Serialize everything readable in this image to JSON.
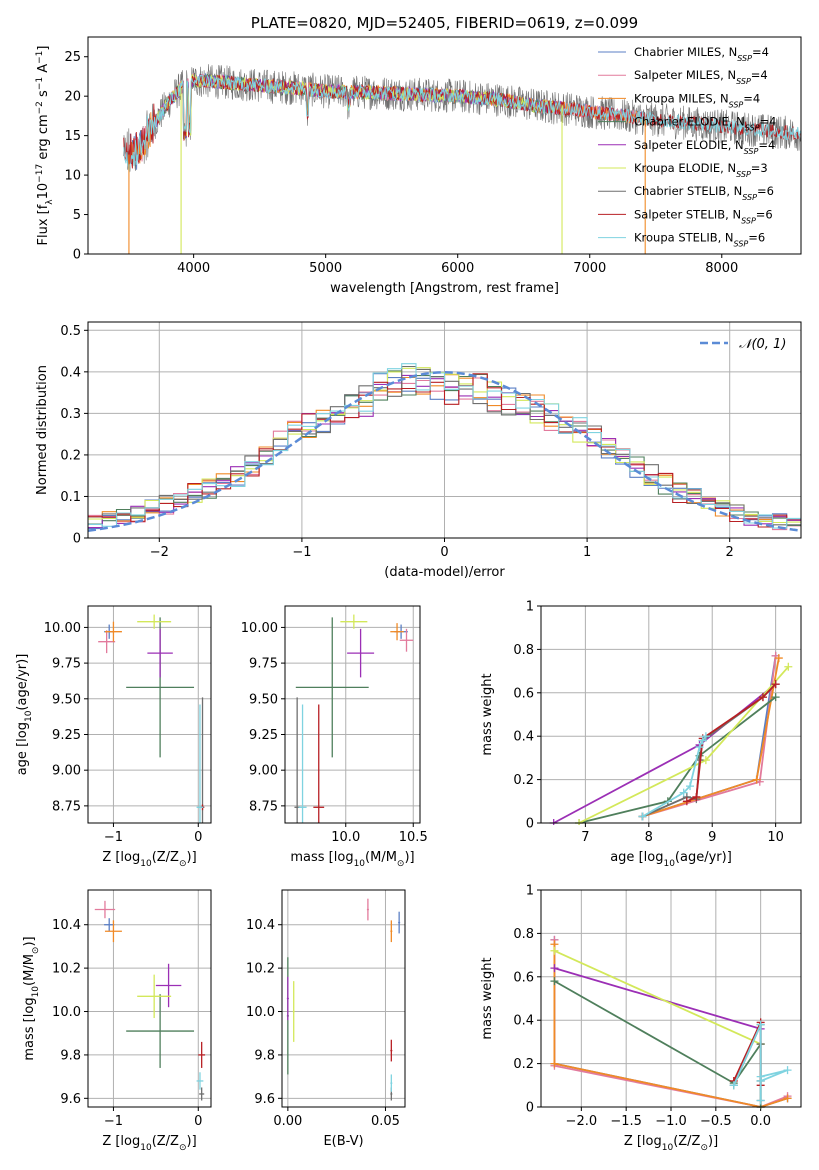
{
  "colors": {
    "Chabrier MILES": "#5b7fc4",
    "Salpeter MILES": "#e27a9c",
    "Kroupa MILES": "#f08a26",
    "Chabrier ELODIE": "#4f7f5c",
    "Salpeter ELODIE": "#9b2fb5",
    "Kroupa ELODIE": "#d3e85a",
    "Chabrier STELIB": "#6f6f6f",
    "Salpeter STELIB": "#b82024",
    "Kroupa STELIB": "#7fd3e0"
  },
  "chart_data": [
    {
      "id": "spectrum",
      "type": "line",
      "title": "PLATE=0820, MJD=52405, FIBERID=0619, z=0.099",
      "xlabel": "wavelength [Angstrom, rest frame]",
      "ylabel": "Flux [f",
      "ylabel_parts": [
        "Flux [f",
        "λ",
        "10",
        "−17",
        " erg cm",
        "−2",
        " s",
        "−1",
        " A",
        "−1",
        "]"
      ],
      "xlim": [
        3200,
        8600
      ],
      "ylim": [
        0,
        27.5
      ],
      "xticks": [
        4000,
        5000,
        6000,
        7000,
        8000
      ],
      "yticks": [
        0,
        5,
        10,
        15,
        20,
        25
      ],
      "legend_position": "top-right",
      "legend": [
        {
          "name": "Chabrier MILES",
          "nssp": "4"
        },
        {
          "name": "Salpeter MILES",
          "nssp": "4"
        },
        {
          "name": "Kroupa MILES",
          "nssp": "4"
        },
        {
          "name": "Chabrier ELODIE",
          "nssp": "4"
        },
        {
          "name": "Salpeter ELODIE",
          "nssp": "4"
        },
        {
          "name": "Kroupa ELODIE",
          "nssp": "3"
        },
        {
          "name": "Chabrier STELIB",
          "nssp": "6"
        },
        {
          "name": "Salpeter STELIB",
          "nssp": "6"
        },
        {
          "name": "Kroupa STELIB",
          "nssp": "6"
        }
      ],
      "legend_suffix": ", N",
      "legend_sub": "SSP",
      "trend": {
        "x": [
          3500,
          3600,
          3700,
          3800,
          3900,
          4000,
          4200,
          4400,
          4600,
          4800,
          5000,
          5300,
          5600,
          6000,
          6300,
          6600,
          6900,
          7200,
          7500,
          7800,
          8100,
          8400,
          8600
        ],
        "y": [
          12.5,
          13.5,
          16.5,
          19.0,
          21.0,
          22.0,
          21.8,
          21.5,
          21.2,
          21.0,
          20.6,
          20.5,
          20.3,
          20.0,
          19.6,
          18.8,
          18.3,
          17.6,
          17.0,
          16.5,
          16.0,
          15.5,
          15.2
        ]
      },
      "drops": [
        {
          "series": "Kroupa MILES",
          "x": 3510,
          "y": 0
        },
        {
          "series": "Kroupa ELODIE",
          "x": 3905,
          "y": 0
        },
        {
          "series": "Kroupa ELODIE",
          "x": 6790,
          "y": 0
        },
        {
          "series": "Kroupa MILES",
          "x": 7420,
          "y": 0
        }
      ]
    },
    {
      "id": "residuals",
      "type": "line",
      "xlabel": "(data-model)/error",
      "ylabel": "Normed distribution",
      "xlim": [
        -2.5,
        2.5
      ],
      "ylim": [
        0,
        0.52
      ],
      "xticks": [
        -2,
        -1,
        0,
        1,
        2
      ],
      "yticks": [
        0.0,
        0.1,
        0.2,
        0.3,
        0.4,
        0.5
      ],
      "legend_position": "top-right",
      "legend": [
        {
          "name": "𝒩(0, 1)",
          "style": "dashed"
        }
      ],
      "bin_centers": [
        -2.45,
        -2.35,
        -2.25,
        -2.15,
        -2.05,
        -1.95,
        -1.85,
        -1.75,
        -1.65,
        -1.55,
        -1.45,
        -1.35,
        -1.25,
        -1.15,
        -1.05,
        -0.95,
        -0.85,
        -0.75,
        -0.65,
        -0.55,
        -0.45,
        -0.35,
        -0.25,
        -0.15,
        -0.05,
        0.05,
        0.15,
        0.25,
        0.35,
        0.45,
        0.55,
        0.65,
        0.75,
        0.85,
        0.95,
        1.05,
        1.15,
        1.25,
        1.35,
        1.45,
        1.55,
        1.65,
        1.75,
        1.85,
        1.95,
        2.05,
        2.15,
        2.25,
        2.35,
        2.45
      ],
      "hist_envelope": [
        0.04,
        0.045,
        0.05,
        0.06,
        0.07,
        0.08,
        0.09,
        0.11,
        0.12,
        0.13,
        0.15,
        0.17,
        0.2,
        0.23,
        0.26,
        0.27,
        0.28,
        0.3,
        0.32,
        0.33,
        0.36,
        0.38,
        0.38,
        0.37,
        0.36,
        0.36,
        0.37,
        0.36,
        0.34,
        0.33,
        0.32,
        0.31,
        0.29,
        0.27,
        0.26,
        0.24,
        0.22,
        0.2,
        0.17,
        0.15,
        0.13,
        0.11,
        0.1,
        0.08,
        0.07,
        0.06,
        0.05,
        0.045,
        0.04,
        0.035
      ]
    },
    {
      "id": "age-vs-Z",
      "type": "scatter",
      "xlabel": "Z [log",
      "xlabel_parts": [
        "Z [log",
        "10",
        "(Z/Z",
        "⊙",
        ")]"
      ],
      "ylabel": "age  [log",
      "ylabel_parts": [
        "age  [log",
        "10",
        "(age/yr)]"
      ],
      "xlim": [
        -1.3,
        0.15
      ],
      "ylim": [
        8.63,
        10.15
      ],
      "xticks": [
        -1,
        0
      ],
      "yticks": [
        8.75,
        9.0,
        9.25,
        9.5,
        9.75,
        10.0
      ],
      "ytick_labels": [
        "8.75",
        "9.00",
        "9.25",
        "9.50",
        "9.75",
        "10.00"
      ],
      "points": [
        {
          "series": "Chabrier MILES",
          "x": -1.05,
          "y": 9.97,
          "xerr": 0.06,
          "yerr": 0.05
        },
        {
          "series": "Salpeter MILES",
          "x": -1.08,
          "y": 9.9,
          "xerr": 0.1,
          "yerr": 0.08
        },
        {
          "series": "Kroupa MILES",
          "x": -1.0,
          "y": 9.97,
          "xerr": 0.1,
          "yerr": 0.07
        },
        {
          "series": "Chabrier ELODIE",
          "x": -0.45,
          "y": 9.58,
          "xerr": 0.4,
          "yerr": 0.49
        },
        {
          "series": "Salpeter ELODIE",
          "x": -0.45,
          "y": 9.82,
          "xerr": 0.15,
          "yerr": 0.17
        },
        {
          "series": "Kroupa ELODIE",
          "x": -0.52,
          "y": 10.04,
          "xerr": 0.2,
          "yerr": 0.05
        },
        {
          "series": "Chabrier STELIB",
          "x": 0.05,
          "y": 8.74,
          "xerr": 0.02,
          "yerr": 0.77
        },
        {
          "series": "Salpeter STELIB",
          "x": 0.05,
          "y": 8.74,
          "xerr": 0.02,
          "yerr": 0.02
        },
        {
          "series": "Kroupa STELIB",
          "x": 0.02,
          "y": 8.74,
          "xerr": 0.04,
          "yerr": 0.72
        }
      ]
    },
    {
      "id": "age-vs-mass",
      "type": "scatter",
      "xlabel": "mass [log",
      "xlabel_parts": [
        "mass [log",
        "10",
        "(M/M",
        "⊙",
        ")]"
      ],
      "ylabel": "",
      "xlim": [
        9.55,
        10.55
      ],
      "ylim": [
        8.63,
        10.15
      ],
      "xticks": [
        10.0,
        10.5
      ],
      "xtick_labels": [
        "10.0",
        "10.5"
      ],
      "yticks": [
        8.75,
        9.0,
        9.25,
        9.5,
        9.75,
        10.0
      ],
      "ytick_labels": [
        "8.75",
        "9.00",
        "9.25",
        "9.50",
        "9.75",
        "10.00"
      ],
      "points": [
        {
          "series": "Chabrier MILES",
          "x": 10.41,
          "y": 9.97,
          "xerr": 0.05,
          "yerr": 0.05
        },
        {
          "series": "Salpeter MILES",
          "x": 10.45,
          "y": 9.91,
          "xerr": 0.05,
          "yerr": 0.08
        },
        {
          "series": "Kroupa MILES",
          "x": 10.38,
          "y": 9.97,
          "xerr": 0.05,
          "yerr": 0.06
        },
        {
          "series": "Chabrier ELODIE",
          "x": 9.9,
          "y": 9.58,
          "xerr": 0.27,
          "yerr": 0.49
        },
        {
          "series": "Salpeter ELODIE",
          "x": 10.11,
          "y": 9.82,
          "xerr": 0.1,
          "yerr": 0.17
        },
        {
          "series": "Kroupa ELODIE",
          "x": 10.06,
          "y": 10.04,
          "xerr": 0.1,
          "yerr": 0.05
        },
        {
          "series": "Chabrier STELIB",
          "x": 9.64,
          "y": 8.74,
          "xerr": 0.02,
          "yerr": 0.77
        },
        {
          "series": "Salpeter STELIB",
          "x": 9.8,
          "y": 8.74,
          "xerr": 0.04,
          "yerr": 0.72
        },
        {
          "series": "Kroupa STELIB",
          "x": 9.68,
          "y": 8.74,
          "xerr": 0.03,
          "yerr": 0.72
        }
      ]
    },
    {
      "id": "mass-weight-vs-age",
      "type": "line",
      "xlabel": "age  [log",
      "xlabel_parts": [
        "age  [log",
        "10",
        "(age/yr)]"
      ],
      "ylabel": "mass weight",
      "xlim": [
        6.3,
        10.4
      ],
      "ylim": [
        0,
        1.0
      ],
      "xticks": [
        7,
        8,
        9,
        10
      ],
      "yticks": [
        0.0,
        0.2,
        0.4,
        0.6,
        0.8,
        1.0
      ],
      "series": [
        {
          "name": "Chabrier MILES",
          "x": [
            7.9,
            9.7,
            10.0
          ],
          "y": [
            0.03,
            0.2,
            0.77
          ]
        },
        {
          "name": "Salpeter MILES",
          "x": [
            7.9,
            9.75,
            10.0
          ],
          "y": [
            0.03,
            0.19,
            0.77
          ]
        },
        {
          "name": "Kroupa MILES",
          "x": [
            7.9,
            9.7,
            10.05
          ],
          "y": [
            0.03,
            0.2,
            0.76
          ]
        },
        {
          "name": "Chabrier ELODIE",
          "x": [
            6.9,
            8.3,
            8.8,
            10.0
          ],
          "y": [
            0.0,
            0.1,
            0.31,
            0.58
          ]
        },
        {
          "name": "Salpeter ELODIE",
          "x": [
            6.5,
            8.8,
            10.0
          ],
          "y": [
            0.0,
            0.36,
            0.64
          ]
        },
        {
          "name": "Kroupa ELODIE",
          "x": [
            6.9,
            8.9,
            10.2
          ],
          "y": [
            0.0,
            0.29,
            0.72
          ]
        },
        {
          "name": "Chabrier STELIB",
          "x": [
            7.9,
            8.6,
            8.75,
            8.8,
            8.85,
            9.8,
            10.0
          ],
          "y": [
            0.03,
            0.12,
            0.11,
            0.29,
            0.38,
            0.58,
            0.64
          ]
        },
        {
          "name": "Salpeter STELIB",
          "x": [
            8.6,
            8.75,
            8.85,
            9.8,
            10.0
          ],
          "y": [
            0.1,
            0.12,
            0.39,
            0.58,
            0.64
          ]
        },
        {
          "name": "Kroupa STELIB",
          "x": [
            7.9,
            8.55,
            8.65,
            8.8,
            8.85,
            8.9
          ],
          "y": [
            0.03,
            0.14,
            0.17,
            0.35,
            0.38,
            0.4
          ]
        }
      ]
    },
    {
      "id": "mass-vs-Z",
      "type": "scatter",
      "xlabel": "Z [log",
      "xlabel_parts": [
        "Z [log",
        "10",
        "(Z/Z",
        "⊙",
        ")]"
      ],
      "ylabel": "mass [log",
      "ylabel_parts": [
        "mass [log",
        "10",
        "(M/M",
        "⊙",
        ")]"
      ],
      "xlim": [
        -1.3,
        0.15
      ],
      "ylim": [
        9.56,
        10.56
      ],
      "xticks": [
        -1,
        0
      ],
      "yticks": [
        9.6,
        9.8,
        10.0,
        10.2,
        10.4
      ],
      "ytick_labels": [
        "9.6",
        "9.8",
        "10.0",
        "10.2",
        "10.4"
      ],
      "points": [
        {
          "series": "Chabrier MILES",
          "x": -1.05,
          "y": 10.4,
          "xerr": 0.06,
          "yerr": 0.03
        },
        {
          "series": "Salpeter MILES",
          "x": -1.1,
          "y": 10.47,
          "xerr": 0.12,
          "yerr": 0.04
        },
        {
          "series": "Kroupa MILES",
          "x": -1.0,
          "y": 10.37,
          "xerr": 0.1,
          "yerr": 0.05
        },
        {
          "series": "Chabrier ELODIE",
          "x": -0.45,
          "y": 9.91,
          "xerr": 0.4,
          "yerr": 0.17
        },
        {
          "series": "Salpeter ELODIE",
          "x": -0.35,
          "y": 10.12,
          "xerr": 0.15,
          "yerr": 0.1
        },
        {
          "series": "Kroupa ELODIE",
          "x": -0.52,
          "y": 10.07,
          "xerr": 0.2,
          "yerr": 0.1
        },
        {
          "series": "Chabrier STELIB",
          "x": 0.04,
          "y": 9.62,
          "xerr": 0.03,
          "yerr": 0.03
        },
        {
          "series": "Salpeter STELIB",
          "x": 0.04,
          "y": 9.8,
          "xerr": 0.04,
          "yerr": 0.06
        },
        {
          "series": "Kroupa STELIB",
          "x": 0.02,
          "y": 9.68,
          "xerr": 0.04,
          "yerr": 0.04
        }
      ]
    },
    {
      "id": "mass-vs-EBV",
      "type": "scatter",
      "xlabel": "E(B-V)",
      "ylabel": "",
      "xlim": [
        -0.003,
        0.06
      ],
      "ylim": [
        9.56,
        10.56
      ],
      "xticks": [
        0.0,
        0.05
      ],
      "xtick_labels": [
        "0.00",
        "0.05"
      ],
      "yticks": [
        9.6,
        9.8,
        10.0,
        10.2,
        10.4
      ],
      "ytick_labels": [
        "9.6",
        "9.8",
        "10.0",
        "10.2",
        "10.4"
      ],
      "points": [
        {
          "series": "Chabrier MILES",
          "x": 0.057,
          "y": 10.41,
          "xerr": 0.0,
          "yerr": 0.05
        },
        {
          "series": "Salpeter MILES",
          "x": 0.041,
          "y": 10.47,
          "xerr": 0.0,
          "yerr": 0.05
        },
        {
          "series": "Kroupa MILES",
          "x": 0.053,
          "y": 10.37,
          "xerr": 0.0,
          "yerr": 0.05
        },
        {
          "series": "Chabrier ELODIE",
          "x": 0.0,
          "y": 9.98,
          "xerr": 0.0,
          "yerr": 0.27
        },
        {
          "series": "Salpeter ELODIE",
          "x": 0.0,
          "y": 10.06,
          "xerr": 0.0,
          "yerr": 0.1
        },
        {
          "series": "Kroupa ELODIE",
          "x": 0.003,
          "y": 10.0,
          "xerr": 0.0,
          "yerr": 0.14
        },
        {
          "series": "Chabrier STELIB",
          "x": 0.053,
          "y": 9.62,
          "xerr": 0.0,
          "yerr": 0.03
        },
        {
          "series": "Salpeter STELIB",
          "x": 0.053,
          "y": 9.82,
          "xerr": 0.0,
          "yerr": 0.05
        },
        {
          "series": "Kroupa STELIB",
          "x": 0.053,
          "y": 9.67,
          "xerr": 0.0,
          "yerr": 0.04
        }
      ]
    },
    {
      "id": "mass-weight-vs-Z",
      "type": "line",
      "xlabel": "Z [log",
      "xlabel_parts": [
        "Z [log",
        "10",
        "(Z/Z",
        "⊙",
        ")]"
      ],
      "ylabel": "mass weight",
      "xlim": [
        -2.45,
        0.45
      ],
      "ylim": [
        0,
        1.0
      ],
      "xticks": [
        -2.0,
        -1.5,
        -1.0,
        -0.5,
        0.0
      ],
      "xtick_labels": [
        "−2.0",
        "−1.5",
        "−1.0",
        "−0.5",
        "0.0"
      ],
      "yticks": [
        0.0,
        0.2,
        0.4,
        0.6,
        0.8,
        1.0
      ],
      "series": [
        {
          "name": "Chabrier MILES",
          "x": [
            -2.3,
            -2.3,
            0.0,
            0.3
          ],
          "y": [
            0.77,
            0.2,
            0.0,
            0.04
          ]
        },
        {
          "name": "Salpeter MILES",
          "x": [
            -2.3,
            -2.3,
            0.0,
            0.3
          ],
          "y": [
            0.77,
            0.19,
            0.0,
            0.05
          ]
        },
        {
          "name": "Kroupa MILES",
          "x": [
            -2.3,
            -2.3,
            0.0,
            0.3
          ],
          "y": [
            0.75,
            0.2,
            0.0,
            0.04
          ]
        },
        {
          "name": "Chabrier ELODIE",
          "x": [
            -2.3,
            -0.3,
            0.0,
            0.0
          ],
          "y": [
            0.58,
            0.11,
            0.29,
            0.0
          ]
        },
        {
          "name": "Salpeter ELODIE",
          "x": [
            -2.3,
            0.0
          ],
          "y": [
            0.64,
            0.36
          ]
        },
        {
          "name": "Kroupa ELODIE",
          "x": [
            -2.3,
            0.0
          ],
          "y": [
            0.72,
            0.29
          ]
        },
        {
          "name": "Chabrier STELIB",
          "x": [
            -0.3,
            0.0,
            0.0,
            0.0,
            0.0
          ],
          "y": [
            0.1,
            0.38,
            0.29,
            0.12,
            0.03
          ]
        },
        {
          "name": "Salpeter STELIB",
          "x": [
            -0.3,
            0.0,
            0.0
          ],
          "y": [
            0.12,
            0.39,
            0.1
          ]
        },
        {
          "name": "Kroupa STELIB",
          "x": [
            -0.3,
            0.0,
            0.0,
            0.0,
            0.3,
            0.0
          ],
          "y": [
            0.1,
            0.38,
            0.03,
            0.12,
            0.17,
            0.14
          ]
        }
      ]
    }
  ]
}
